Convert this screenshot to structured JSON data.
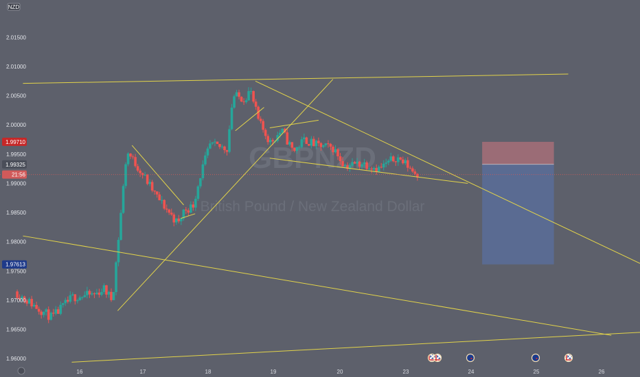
{
  "chart_data": {
    "type": "candlestick",
    "symbol_badge": "NZD",
    "watermark": {
      "symbol": "GBPNZD",
      "name": "British Pound / New Zealand Dollar"
    },
    "y_axis": {
      "range": [
        1.9585,
        2.0202
      ],
      "ticks": [
        "2.01500",
        "2.01000",
        "2.00500",
        "2.00000",
        "1.99500",
        "1.99000",
        "1.98500",
        "1.98000",
        "1.97500",
        "1.97000",
        "1.96500",
        "1.96000"
      ]
    },
    "x_axis": {
      "range": [
        15.05,
        26.2
      ],
      "ticks": [
        "16",
        "17",
        "18",
        "19",
        "20",
        "23",
        "24",
        "25",
        "26"
      ]
    },
    "price_badges": [
      {
        "label": "1.99710",
        "value": 1.9971,
        "color": "#c62828"
      },
      {
        "label": "1.99325",
        "value": 1.99325,
        "color": "#4a4e59"
      },
      {
        "label": "21:56",
        "value": 1.9915,
        "color": "#d05a5a"
      },
      {
        "label": "1.97613",
        "value": 1.97613,
        "color": "#1e3a8a"
      }
    ],
    "current_price": 1.9915,
    "position": {
      "type": "short",
      "entry": 1.99325,
      "stop": 1.9971,
      "target": 1.97613,
      "x_start": 23.45,
      "x_end": 24.7,
      "stop_color": "#b0707a",
      "target_color": "#5a6e9c"
    },
    "drawings": [
      {
        "name": "upper-resistance-line",
        "x1": 15.45,
        "y1": 2.0071,
        "x2": 24.95,
        "y2": 2.0087
      },
      {
        "name": "lower-support-line",
        "x1": 16.3,
        "y1": 1.9594,
        "x2": 26.2,
        "y2": 1.9645
      },
      {
        "name": "long-descending-line",
        "x1": 15.45,
        "y1": 1.981,
        "x2": 25.7,
        "y2": 1.964
      },
      {
        "name": "diagonal-descending-line",
        "x1": 19.5,
        "y1": 2.0075,
        "x2": 26.2,
        "y2": 1.9763
      },
      {
        "name": "rising-trendline",
        "x1": 17.1,
        "y1": 1.9682,
        "x2": 20.85,
        "y2": 2.0078
      },
      {
        "name": "drop-line-1",
        "x1": 17.35,
        "y1": 1.9965,
        "x2": 18.25,
        "y2": 1.9863
      },
      {
        "name": "drop-line-2",
        "x1": 19.15,
        "y1": 1.999,
        "x2": 19.65,
        "y2": 2.003
      },
      {
        "name": "flag-top",
        "x1": 19.75,
        "y1": 1.9995,
        "x2": 20.6,
        "y2": 2.0008
      },
      {
        "name": "flag-bottom",
        "x1": 19.75,
        "y1": 1.9943,
        "x2": 23.2,
        "y2": 1.99
      },
      {
        "name": "mini-line",
        "x1": 18.2,
        "y1": 1.984,
        "x2": 18.45,
        "y2": 1.9848
      }
    ],
    "colors": {
      "background": "#5d606b",
      "up": "#26a69a",
      "down": "#ef5350",
      "drawing": "#e3d44a",
      "axis_text": "#e3e5ea"
    },
    "event_markers": [
      "uk-flag-icon",
      "uk-flag-icon",
      "nz-flag-icon",
      "nz-flag-icon",
      "uk-flag-icon"
    ]
  }
}
